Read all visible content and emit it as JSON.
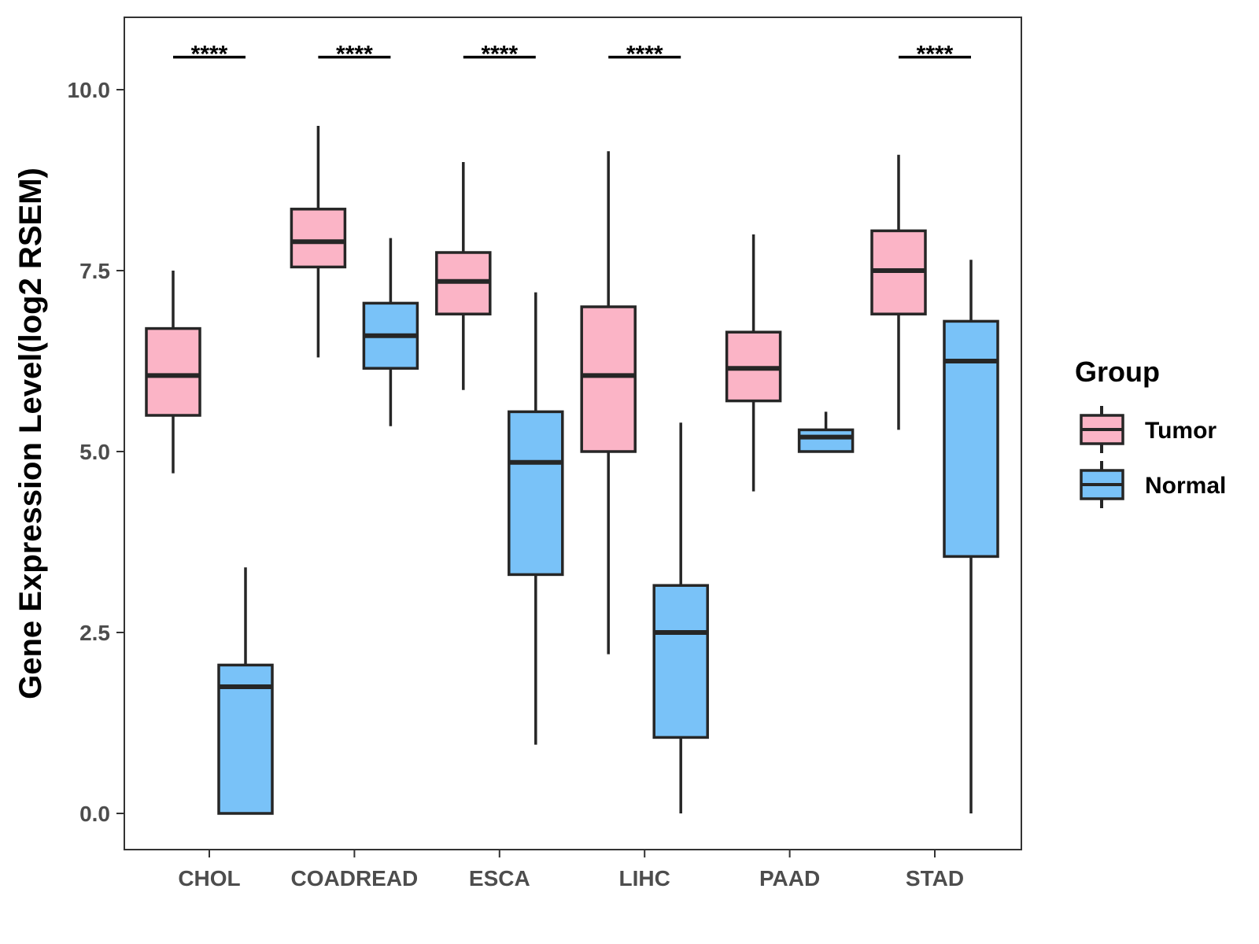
{
  "colors": {
    "tumor": "#fbb4c6",
    "normal": "#79c2f8",
    "stroke": "#262626",
    "frame": "#333333"
  },
  "chart_data": {
    "type": "boxplot",
    "title": "",
    "xlabel": "",
    "ylabel": "Gene Expression Level(log2 RSEM)",
    "ylim": [
      -0.5,
      11
    ],
    "yticks": [
      "0.0",
      "2.5",
      "5.0",
      "7.5",
      "10.0"
    ],
    "ytick_values": [
      0,
      2.5,
      5,
      7.5,
      10
    ],
    "categories": [
      "CHOL",
      "COADREAD",
      "ESCA",
      "LIHC",
      "PAAD",
      "STAD"
    ],
    "legend": {
      "title": "Group",
      "position": "right",
      "entries": [
        "Tumor",
        "Normal"
      ]
    },
    "series": [
      {
        "name": "Tumor",
        "boxes": [
          {
            "whisker_low": 4.7,
            "q1": 5.5,
            "median": 6.05,
            "q3": 6.7,
            "whisker_high": 7.5
          },
          {
            "whisker_low": 6.3,
            "q1": 7.55,
            "median": 7.9,
            "q3": 8.35,
            "whisker_high": 9.5
          },
          {
            "whisker_low": 5.85,
            "q1": 6.9,
            "median": 7.35,
            "q3": 7.75,
            "whisker_high": 9.0
          },
          {
            "whisker_low": 2.2,
            "q1": 5.0,
            "median": 6.05,
            "q3": 7.0,
            "whisker_high": 9.15
          },
          {
            "whisker_low": 4.45,
            "q1": 5.7,
            "median": 6.15,
            "q3": 6.65,
            "whisker_high": 8.0
          },
          {
            "whisker_low": 5.3,
            "q1": 6.9,
            "median": 7.5,
            "q3": 8.05,
            "whisker_high": 9.1
          }
        ]
      },
      {
        "name": "Normal",
        "boxes": [
          {
            "whisker_low": 0.0,
            "q1": 0.0,
            "median": 1.75,
            "q3": 2.05,
            "whisker_high": 3.4
          },
          {
            "whisker_low": 5.35,
            "q1": 6.15,
            "median": 6.6,
            "q3": 7.05,
            "whisker_high": 7.95
          },
          {
            "whisker_low": 0.95,
            "q1": 3.3,
            "median": 4.85,
            "q3": 5.55,
            "whisker_high": 7.2
          },
          {
            "whisker_low": 0.0,
            "q1": 1.05,
            "median": 2.5,
            "q3": 3.15,
            "whisker_high": 5.4
          },
          {
            "whisker_low": 5.0,
            "q1": 5.0,
            "median": 5.2,
            "q3": 5.3,
            "whisker_high": 5.55
          },
          {
            "whisker_low": 0.0,
            "q1": 3.55,
            "median": 6.25,
            "q3": 6.8,
            "whisker_high": 7.65
          }
        ]
      }
    ],
    "significance": [
      "****",
      "****",
      "****",
      "****",
      "",
      "****"
    ],
    "significance_level": 10.45
  }
}
